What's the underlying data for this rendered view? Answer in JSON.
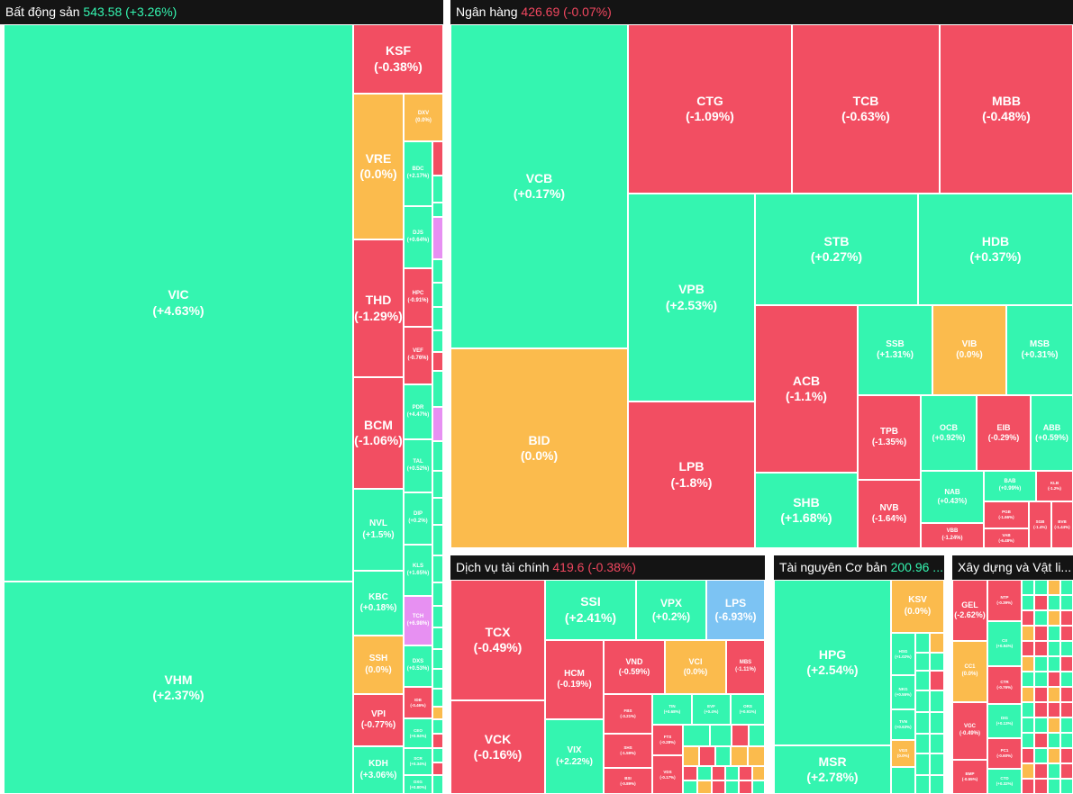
{
  "sectors": [
    {
      "name": "Bất động sản",
      "value": "543.58",
      "change": "(+3.26%)",
      "direction": "up"
    },
    {
      "name": "Ngân hàng",
      "value": "426.69",
      "change": "(-0.07%)",
      "direction": "down"
    },
    {
      "name": "Dịch vụ tài chính",
      "value": "419.6",
      "change": "(-0.38%)",
      "direction": "down"
    },
    {
      "name": "Tài nguyên Cơ bản",
      "value": "200.96 ...",
      "change": "",
      "direction": "up"
    },
    {
      "name": "Xây dựng và Vật li...",
      "value": "",
      "change": "",
      "direction": "up"
    }
  ],
  "tiles": {
    "VIC": {
      "symbol": "VIC",
      "change": "(+4.63%)"
    },
    "VHM": {
      "symbol": "VHM",
      "change": "(+2.37%)"
    },
    "KSF": {
      "symbol": "KSF",
      "change": "(-0.38%)"
    },
    "VRE": {
      "symbol": "VRE",
      "change": "(0.0%)"
    },
    "THD": {
      "symbol": "THD",
      "change": "(-1.29%)"
    },
    "BCM": {
      "symbol": "BCM",
      "change": "(-1.06%)"
    },
    "NVL": {
      "symbol": "NVL",
      "change": "(+1.5%)"
    },
    "KBC": {
      "symbol": "KBC",
      "change": "(+0.18%)"
    },
    "SSH": {
      "symbol": "SSH",
      "change": "(0.0%)"
    },
    "VPI": {
      "symbol": "VPI",
      "change": "(-0.77%)"
    },
    "KDH": {
      "symbol": "KDH",
      "change": "(+3.06%)"
    },
    "DXV": {
      "symbol": "DXV",
      "change": "(0.0%)"
    },
    "BDC": {
      "symbol": "BDC",
      "change": "(+2.17%)"
    },
    "DJS": {
      "symbol": "DJS",
      "change": "(+0.64%)"
    },
    "HPC": {
      "symbol": "HPC",
      "change": "(-0.91%)"
    },
    "VEF": {
      "symbol": "VEF",
      "change": "(-0.76%)"
    },
    "PDR": {
      "symbol": "PDR",
      "change": "(+4.47%)"
    },
    "TAL": {
      "symbol": "TAL",
      "change": "(+0.52%)"
    },
    "DIP": {
      "symbol": "DIP",
      "change": "(+0.2%)"
    },
    "KLS": {
      "symbol": "KLS",
      "change": "(+1.65%)"
    },
    "TCH": {
      "symbol": "TCH",
      "change": "(+6.98%)"
    },
    "DXS": {
      "symbol": "DXS",
      "change": "(+0.53%)"
    },
    "IDB": {
      "symbol": "IDB",
      "change": "(-0.46%)"
    },
    "CEO": {
      "symbol": "CEO",
      "change": "(+0.94%)"
    },
    "SCR": {
      "symbol": "SCR",
      "change": "(+0.34%)"
    },
    "DXG": {
      "symbol": "DXG",
      "change": "(+0.80%)"
    },
    "VCB": {
      "symbol": "VCB",
      "change": "(+0.17%)"
    },
    "BID": {
      "symbol": "BID",
      "change": "(0.0%)"
    },
    "CTG": {
      "symbol": "CTG",
      "change": "(-1.09%)"
    },
    "TCB": {
      "symbol": "TCB",
      "change": "(-0.63%)"
    },
    "MBB": {
      "symbol": "MBB",
      "change": "(-0.48%)"
    },
    "VPB": {
      "symbol": "VPB",
      "change": "(+2.53%)"
    },
    "LPB": {
      "symbol": "LPB",
      "change": "(-1.8%)"
    },
    "STB": {
      "symbol": "STB",
      "change": "(+0.27%)"
    },
    "HDB": {
      "symbol": "HDB",
      "change": "(+0.37%)"
    },
    "ACB": {
      "symbol": "ACB",
      "change": "(-1.1%)"
    },
    "SHB": {
      "symbol": "SHB",
      "change": "(+1.68%)"
    },
    "SSB": {
      "symbol": "SSB",
      "change": "(+1.31%)"
    },
    "VIB": {
      "symbol": "VIB",
      "change": "(0.0%)"
    },
    "MSB": {
      "symbol": "MSB",
      "change": "(+0.31%)"
    },
    "TPB": {
      "symbol": "TPB",
      "change": "(-1.35%)"
    },
    "NVB": {
      "symbol": "NVB",
      "change": "(-1.64%)"
    },
    "OCB": {
      "symbol": "OCB",
      "change": "(+0.92%)"
    },
    "EIB": {
      "symbol": "EIB",
      "change": "(-0.29%)"
    },
    "ABB": {
      "symbol": "ABB",
      "change": "(+0.59%)"
    },
    "NAB": {
      "symbol": "NAB",
      "change": "(+0.43%)"
    },
    "VBB": {
      "symbol": "VBB",
      "change": "(-1.24%)"
    },
    "BAB": {
      "symbol": "BAB",
      "change": "(+0.99%)"
    },
    "KLB": {
      "symbol": "KLB",
      "change": "(-1.2%)"
    },
    "PGB": {
      "symbol": "PGB",
      "change": "(-1.66%)"
    },
    "SGB": {
      "symbol": "SGB",
      "change": "(-1.4%)"
    },
    "BVB": {
      "symbol": "BVB",
      "change": "(-1.44%)"
    },
    "VAB": {
      "symbol": "VAB",
      "change": "(-6.48%)"
    },
    "TCX": {
      "symbol": "TCX",
      "change": "(-0.49%)"
    },
    "VCK": {
      "symbol": "VCK",
      "change": "(-0.16%)"
    },
    "SSI": {
      "symbol": "SSI",
      "change": "(+2.41%)"
    },
    "VPX": {
      "symbol": "VPX",
      "change": "(+0.2%)"
    },
    "LPS": {
      "symbol": "LPS",
      "change": "(-6.93%)"
    },
    "HCM": {
      "symbol": "HCM",
      "change": "(-0.19%)"
    },
    "VND": {
      "symbol": "VND",
      "change": "(-0.59%)"
    },
    "VCI": {
      "symbol": "VCI",
      "change": "(0.0%)"
    },
    "MBS": {
      "symbol": "MBS",
      "change": "(-1.11%)"
    },
    "VIX": {
      "symbol": "VIX",
      "change": "(+2.22%)"
    },
    "FBS": {
      "symbol": "FBS",
      "change": "(-3.21%)"
    },
    "TIN": {
      "symbol": "TIN",
      "change": "(+0.68%)"
    },
    "EVF": {
      "symbol": "EVF",
      "change": "(+0.4%)"
    },
    "ORS": {
      "symbol": "ORS",
      "change": "(+0.91%)"
    },
    "FTS": {
      "symbol": "FTS",
      "change": "(-0.28%)"
    },
    "SHS": {
      "symbol": "SHS",
      "change": "(-1.59%)"
    },
    "BSI": {
      "symbol": "BSI",
      "change": "(-0.89%)"
    },
    "VDS": {
      "symbol": "VDS",
      "change": "(-0.17%)"
    },
    "HPG": {
      "symbol": "HPG",
      "change": "(+2.54%)"
    },
    "MSR": {
      "symbol": "MSR",
      "change": "(+2.78%)"
    },
    "KSV": {
      "symbol": "KSV",
      "change": "(0.0%)"
    },
    "HSG": {
      "symbol": "HSG",
      "change": "(+1.02%)"
    },
    "NKG": {
      "symbol": "NKG",
      "change": "(+0.55%)"
    },
    "TVN": {
      "symbol": "TVN",
      "change": "(+0.63%)"
    },
    "VGS": {
      "symbol": "VGS",
      "change": "(0.0%)"
    },
    "GEL": {
      "symbol": "GEL",
      "change": "(-2.62%)"
    },
    "CC1": {
      "symbol": "CC1",
      "change": "(0.0%)"
    },
    "VGC": {
      "symbol": "VGC",
      "change": "(-0.49%)"
    },
    "BMP": {
      "symbol": "BMP",
      "change": "(-0.55%)"
    },
    "NTP": {
      "symbol": "NTP",
      "change": "(-0.39%)"
    },
    "CII": {
      "symbol": "CII",
      "change": "(+0.94%)"
    },
    "CTR": {
      "symbol": "CTR",
      "change": "(-0.76%)"
    },
    "DIG": {
      "symbol": "DIG",
      "change": "(+0.13%)"
    },
    "PC1": {
      "symbol": "PC1",
      "change": "(-0.60%)"
    },
    "CTD": {
      "symbol": "CTD",
      "change": "(+0.32%)"
    }
  },
  "colors": {
    "up": "#34f5b0",
    "down": "#f24e62",
    "flat": "#fbbb4d",
    "floor": "#7cc3f3",
    "ceiling": "#e790f2",
    "header_bg": "#141414"
  }
}
